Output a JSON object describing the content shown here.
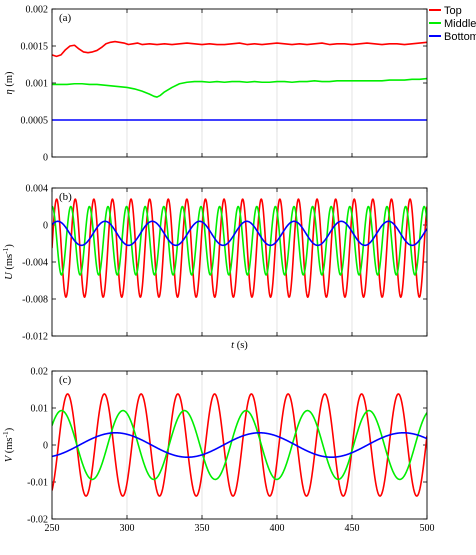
{
  "chart_data": [
    {
      "type": "line",
      "panel_label": "(a)",
      "ylabel_sym": "η",
      "ylabel_unit": " (m)",
      "ylabel_sup": "",
      "xlim": [
        250,
        500
      ],
      "ylim": [
        0,
        0.002
      ],
      "yticks": [
        0,
        0.0005,
        0.001,
        0.0015,
        0.002
      ],
      "ytick_labels": [
        "0",
        "0.0005",
        "0.001",
        "0.0015",
        "0.002"
      ],
      "xticks": [
        250,
        300,
        350,
        400,
        450,
        500
      ],
      "show_xtick_labels": false,
      "grid": true,
      "legend_position": "top-right",
      "series": [
        {
          "name": "Top",
          "color": "#ff0000",
          "kind": "points",
          "x": [
            250,
            253,
            256,
            259,
            262,
            265,
            268,
            271,
            274,
            277,
            280,
            283,
            286,
            289,
            292,
            295,
            298,
            301,
            304,
            307,
            310,
            315,
            320,
            325,
            330,
            335,
            340,
            345,
            350,
            355,
            360,
            365,
            370,
            375,
            380,
            385,
            390,
            395,
            400,
            405,
            410,
            415,
            420,
            425,
            430,
            435,
            440,
            445,
            450,
            455,
            460,
            465,
            470,
            475,
            480,
            485,
            490,
            495,
            500
          ],
          "y": [
            0.00138,
            0.00136,
            0.00138,
            0.00145,
            0.0015,
            0.00151,
            0.00146,
            0.00142,
            0.00141,
            0.00142,
            0.00144,
            0.00148,
            0.00153,
            0.00155,
            0.00156,
            0.00155,
            0.00154,
            0.00152,
            0.00153,
            0.00154,
            0.00152,
            0.00153,
            0.00152,
            0.00153,
            0.00152,
            0.00153,
            0.00154,
            0.00153,
            0.00152,
            0.00153,
            0.00152,
            0.00152,
            0.00153,
            0.00154,
            0.00152,
            0.00153,
            0.00152,
            0.00153,
            0.00154,
            0.00153,
            0.00152,
            0.00153,
            0.00152,
            0.00153,
            0.00154,
            0.00152,
            0.00153,
            0.00153,
            0.00152,
            0.00153,
            0.00154,
            0.00153,
            0.00152,
            0.00153,
            0.00153,
            0.00152,
            0.00153,
            0.00154,
            0.00155
          ]
        },
        {
          "name": "Middle",
          "color": "#00ee00",
          "kind": "points",
          "x": [
            250,
            255,
            260,
            265,
            270,
            275,
            280,
            285,
            290,
            295,
            300,
            305,
            310,
            315,
            318,
            320,
            322,
            325,
            330,
            335,
            340,
            345,
            350,
            355,
            360,
            365,
            370,
            375,
            380,
            385,
            390,
            395,
            400,
            405,
            410,
            415,
            420,
            425,
            430,
            435,
            440,
            445,
            450,
            455,
            460,
            465,
            470,
            475,
            480,
            485,
            490,
            495,
            500
          ],
          "y": [
            0.00098,
            0.00098,
            0.00098,
            0.00099,
            0.00099,
            0.00098,
            0.00098,
            0.00097,
            0.00096,
            0.00095,
            0.00094,
            0.00092,
            0.00089,
            0.00085,
            0.00082,
            0.00081,
            0.00083,
            0.00088,
            0.00094,
            0.00099,
            0.00101,
            0.00102,
            0.00102,
            0.00101,
            0.00102,
            0.00101,
            0.00102,
            0.00102,
            0.00101,
            0.00102,
            0.00101,
            0.00101,
            0.00102,
            0.00102,
            0.00101,
            0.00102,
            0.00102,
            0.00103,
            0.00102,
            0.00102,
            0.00103,
            0.00103,
            0.00103,
            0.00103,
            0.00103,
            0.00103,
            0.00103,
            0.00104,
            0.00104,
            0.00104,
            0.00105,
            0.00105,
            0.00106
          ]
        },
        {
          "name": "Bottom",
          "color": "#0000ff",
          "kind": "points",
          "x": [
            250,
            300,
            350,
            400,
            450,
            500
          ],
          "y": [
            0.0005,
            0.0005,
            0.0005,
            0.0005,
            0.0005,
            0.0005
          ]
        }
      ]
    },
    {
      "type": "line",
      "panel_label": "(b)",
      "ylabel_sym": "U",
      "ylabel_unit": " (ms",
      "ylabel_sup": "-1",
      "xlim": [
        250,
        500
      ],
      "ylim": [
        -0.012,
        0.004
      ],
      "yticks": [
        -0.012,
        -0.008,
        -0.004,
        0,
        0.004
      ],
      "ytick_labels": [
        "-0.012",
        "-0.008",
        "-0.004",
        "0",
        "0.004"
      ],
      "xticks": [
        250,
        300,
        350,
        400,
        450,
        500
      ],
      "show_xtick_labels": false,
      "grid": true,
      "series": [
        {
          "name": "Top",
          "color": "#ff0000",
          "kind": "oscillation",
          "offset": -0.0025,
          "amplitude": 0.0053,
          "period": 12.4,
          "phase": 0,
          "x_start": 250
        },
        {
          "name": "Middle",
          "color": "#00ee00",
          "kind": "oscillation",
          "offset": -0.0017,
          "amplitude": 0.0037,
          "period": 12.4,
          "phase": 1.5,
          "x_start": 250
        },
        {
          "name": "Bottom",
          "color": "#0000ff",
          "kind": "oscillation",
          "offset": -0.0009,
          "amplitude": 0.0013,
          "period": 31.5,
          "phase": 0.8,
          "x_start": 250
        }
      ]
    },
    {
      "type": "line",
      "panel_label": "(c)",
      "ylabel_sym": "V",
      "ylabel_unit": " (ms",
      "ylabel_sup": "-1",
      "xlim": [
        250,
        500
      ],
      "ylim": [
        -0.02,
        0.02
      ],
      "yticks": [
        -0.02,
        -0.01,
        0,
        0.01,
        0.02
      ],
      "ytick_labels": [
        "-0.02",
        "-0.01",
        "0",
        "0.01",
        "0.02"
      ],
      "xticks": [
        250,
        300,
        350,
        400,
        450,
        500
      ],
      "xtick_labels": [
        "250",
        "300",
        "350",
        "400",
        "450",
        "500"
      ],
      "show_xtick_labels": true,
      "xlabel_sym": "t",
      "xlabel_unit": "(s)",
      "grid": true,
      "series": [
        {
          "name": "Top",
          "color": "#ff0000",
          "kind": "oscillation",
          "offset": 0.0,
          "amplitude": 0.0138,
          "period": 24.5,
          "phase": -1.1,
          "x_start": 250
        },
        {
          "name": "Middle",
          "color": "#00ee00",
          "kind": "oscillation",
          "offset": 0.0,
          "amplitude": 0.0093,
          "period": 41.0,
          "phase": 0.6,
          "x_start": 250
        },
        {
          "name": "Bottom",
          "color": "#0000ff",
          "kind": "oscillation",
          "offset": 0.0,
          "amplitude": 0.0033,
          "period": 96,
          "phase": -1.2,
          "x_start": 250
        }
      ]
    }
  ],
  "legend": {
    "items": [
      {
        "label": "Top",
        "color": "#ff0000"
      },
      {
        "label": "Middle",
        "color": "#00ee00"
      },
      {
        "label": "Bottom",
        "color": "#0000ff"
      }
    ]
  }
}
